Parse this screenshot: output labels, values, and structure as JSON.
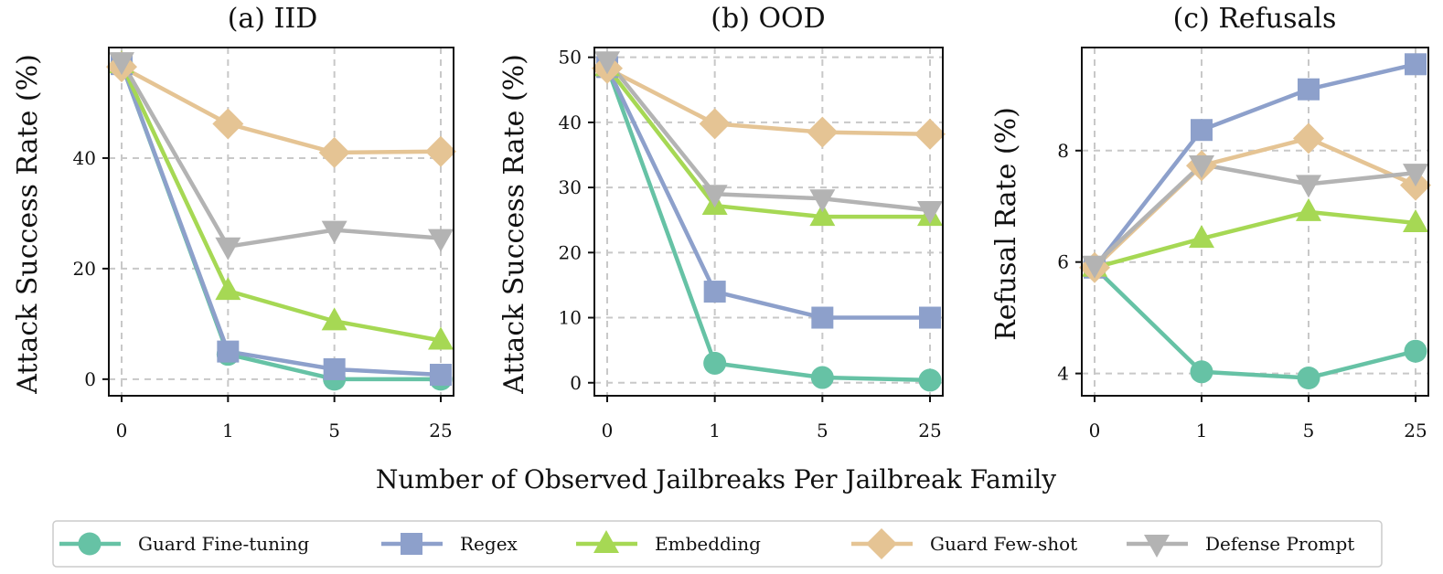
{
  "figure": {
    "xlabel": "Number of Observed Jailbreaks Per Jailbreak Family"
  },
  "legend": {
    "placement": "bottom",
    "items": [
      {
        "label": "Guard Fine-tuning",
        "color": "#66c2a5",
        "marker": "circle"
      },
      {
        "label": "Regex",
        "color": "#8da0cb",
        "marker": "square"
      },
      {
        "label": "Embedding",
        "color": "#a6d854",
        "marker": "triangle-up"
      },
      {
        "label": "Guard Few-shot",
        "color": "#e5c494",
        "marker": "diamond"
      },
      {
        "label": "Defense Prompt",
        "color": "#b3b3b3",
        "marker": "triangle-down"
      }
    ]
  },
  "chart_data": [
    {
      "type": "line",
      "title": "(a) IID",
      "ylabel": "Attack Success Rate (%)",
      "categories": [
        "0",
        "1",
        "5",
        "25"
      ],
      "yticks": [
        0,
        20,
        40
      ],
      "ylim": [
        -3,
        60
      ],
      "grid": true,
      "series": [
        {
          "name": "Guard Fine-tuning",
          "values": [
            57,
            4.5,
            0,
            0
          ]
        },
        {
          "name": "Regex",
          "values": [
            57,
            5,
            1.8,
            0.8
          ]
        },
        {
          "name": "Embedding",
          "values": [
            57,
            16,
            10.5,
            7
          ]
        },
        {
          "name": "Guard Few-shot",
          "values": [
            56.5,
            46.2,
            41,
            41.2
          ]
        },
        {
          "name": "Defense Prompt",
          "values": [
            57.5,
            24,
            27,
            25.5
          ]
        }
      ]
    },
    {
      "type": "line",
      "title": "(b) OOD",
      "ylabel": "Attack Success Rate (%)",
      "categories": [
        "0",
        "1",
        "5",
        "25"
      ],
      "yticks": [
        0,
        10,
        20,
        30,
        40,
        50
      ],
      "ylim": [
        -2,
        51.5
      ],
      "grid": true,
      "series": [
        {
          "name": "Guard Fine-tuning",
          "values": [
            48.5,
            3,
            0.8,
            0.4
          ]
        },
        {
          "name": "Regex",
          "values": [
            48.5,
            14,
            10,
            10
          ]
        },
        {
          "name": "Embedding",
          "values": [
            48.5,
            27.2,
            25.5,
            25.5
          ]
        },
        {
          "name": "Guard Few-shot",
          "values": [
            48.3,
            39.8,
            38.5,
            38.2
          ]
        },
        {
          "name": "Defense Prompt",
          "values": [
            49.5,
            29,
            28.3,
            26.5
          ]
        }
      ]
    },
    {
      "type": "line",
      "title": "(c) Refusals",
      "ylabel": "Refusal Rate (%)",
      "categories": [
        "0",
        "1",
        "5",
        "25"
      ],
      "yticks": [
        4,
        6,
        8
      ],
      "ylim": [
        3.6,
        9.85
      ],
      "grid": true,
      "series": [
        {
          "name": "Guard Fine-tuning",
          "values": [
            5.9,
            4.03,
            3.92,
            4.4
          ]
        },
        {
          "name": "Regex",
          "values": [
            5.9,
            8.37,
            9.1,
            9.55
          ]
        },
        {
          "name": "Embedding",
          "values": [
            5.9,
            6.42,
            6.9,
            6.7
          ]
        },
        {
          "name": "Guard Few-shot",
          "values": [
            5.9,
            7.73,
            8.22,
            7.38
          ]
        },
        {
          "name": "Defense Prompt",
          "values": [
            5.95,
            7.75,
            7.4,
            7.6
          ]
        }
      ]
    }
  ]
}
